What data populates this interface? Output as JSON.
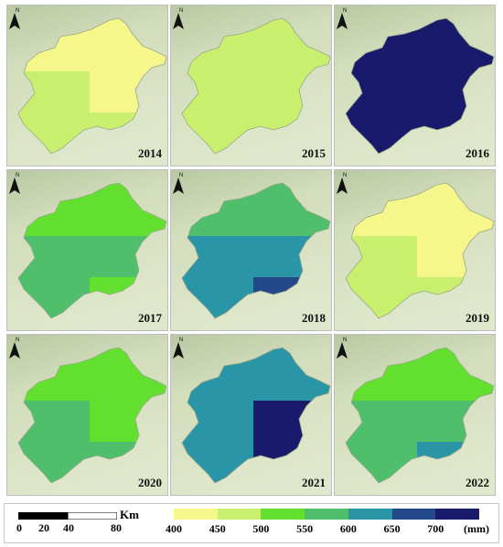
{
  "panels": [
    {
      "year": "2014",
      "zones": [
        "#f6f78a",
        "#c8f06e",
        "#f6f78a",
        "#c8f06e"
      ]
    },
    {
      "year": "2015",
      "zones": [
        "#c8f06e",
        "#c8f06e",
        "#c8f06e",
        "#c8f06e"
      ]
    },
    {
      "year": "2016",
      "zones": [
        "#181a6c",
        "#181a6c",
        "#181a6c",
        "#181a6c"
      ]
    },
    {
      "year": "2017",
      "zones": [
        "#63e02f",
        "#4fbf6b",
        "#4fbf6b",
        "#63e02f"
      ]
    },
    {
      "year": "2018",
      "zones": [
        "#4fbf6b",
        "#2a95a6",
        "#2a95a6",
        "#24498a"
      ]
    },
    {
      "year": "2019",
      "zones": [
        "#f6f78a",
        "#c8f06e",
        "#f6f78a",
        "#c8f06e"
      ]
    },
    {
      "year": "2020",
      "zones": [
        "#63e02f",
        "#4fbf6b",
        "#63e02f",
        "#4fbf6b"
      ]
    },
    {
      "year": "2021",
      "zones": [
        "#2a95a6",
        "#2a95a6",
        "#181a6c",
        "#181a6c"
      ]
    },
    {
      "year": "2022",
      "zones": [
        "#63e02f",
        "#4fbf6b",
        "#4fbf6b",
        "#2a95a6"
      ]
    }
  ],
  "north_label": "N",
  "scalebar": {
    "ticks": [
      "0",
      "20",
      "40",
      "80"
    ],
    "unit": "Km"
  },
  "legend": {
    "ticks": [
      "400",
      "450",
      "500",
      "550",
      "600",
      "650",
      "700"
    ],
    "unit": "(mm)",
    "colors": [
      "#f6f78a",
      "#c8f06e",
      "#63e02f",
      "#4fbf6b",
      "#2a95a6",
      "#24498a",
      "#181a6c"
    ]
  }
}
